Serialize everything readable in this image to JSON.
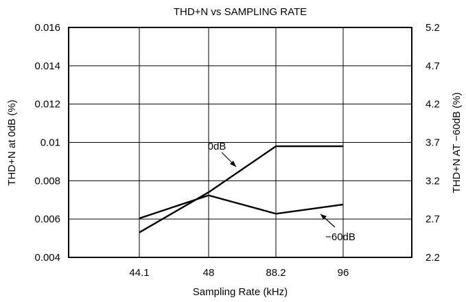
{
  "chart_data": {
    "type": "line",
    "title": "THD+N vs SAMPLING RATE",
    "xlabel": "Sampling Rate (kHz)",
    "ylabel": "THD+N at 0dB (%)",
    "y2label": "THD+N AT −60dB (%)",
    "categories": [
      "44.1",
      "48",
      "88.2",
      "96"
    ],
    "ylim": [
      0.004,
      0.016
    ],
    "y2lim": [
      2.2,
      5.2
    ],
    "yticks": [
      "0.004",
      "0.006",
      "0.008",
      "0.01",
      "0.012",
      "0.014",
      "0.016"
    ],
    "y2ticks": [
      "2.2",
      "2.7",
      "3.2",
      "3.7",
      "4.2",
      "4.7",
      "5.2"
    ],
    "grid": true,
    "series": [
      {
        "name": "0dB",
        "axis": "left",
        "values": [
          0.0053,
          0.0074,
          0.0098,
          0.0098
        ]
      },
      {
        "name": "−60dB",
        "axis": "right",
        "values": [
          2.71,
          3.01,
          2.77,
          2.89
        ]
      }
    ],
    "colors": {
      "line": "#000000",
      "grid": "#000000"
    }
  }
}
